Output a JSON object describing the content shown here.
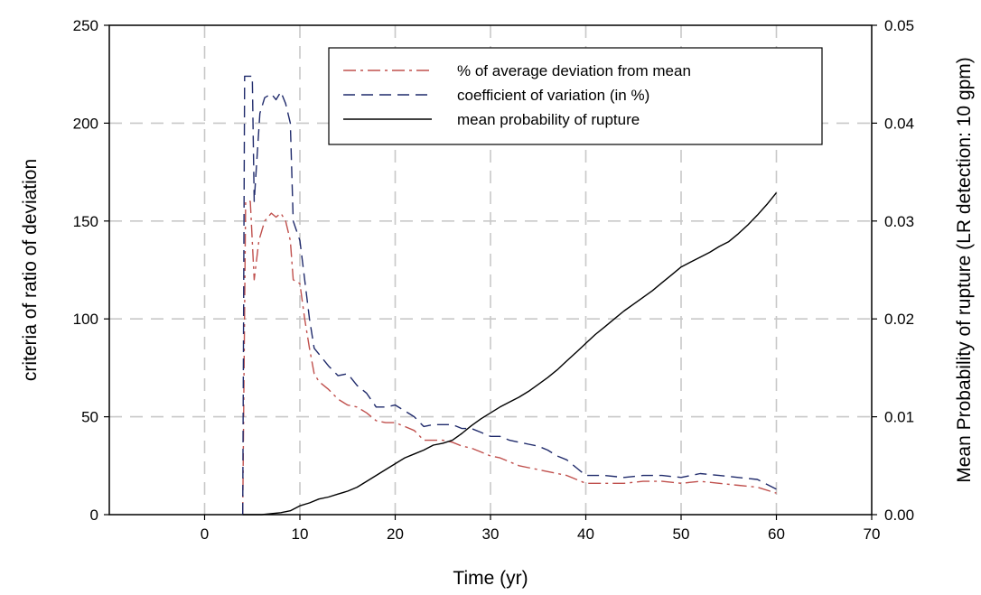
{
  "chart_data": {
    "type": "line",
    "xlabel": "Time (yr)",
    "ylabel_left": "criteria of ratio of deviation",
    "ylabel_right": "Mean Probability of rupture (LR detection: 10 gpm)",
    "xlim": [
      -10,
      70
    ],
    "ylim_left": [
      0,
      250
    ],
    "ylim_right": [
      0,
      0.05
    ],
    "x_ticks": [
      0,
      10,
      20,
      30,
      40,
      50,
      60,
      70
    ],
    "y_ticks_left": [
      0,
      50,
      100,
      150,
      200,
      250
    ],
    "y_ticks_right": [
      "0.00",
      "0.01",
      "0.02",
      "0.03",
      "0.04",
      "0.05"
    ],
    "grid": true,
    "legend_position": "top-right",
    "series": [
      {
        "name": "% of average deviation from mean",
        "axis": "left",
        "color": "#c0504d",
        "style": "dash-dot",
        "points": [
          [
            4,
            0
          ],
          [
            4.3,
            160
          ],
          [
            4.8,
            160
          ],
          [
            5.2,
            120
          ],
          [
            5.7,
            140
          ],
          [
            6.3,
            150
          ],
          [
            7,
            154
          ],
          [
            7.5,
            152
          ],
          [
            8,
            154
          ],
          [
            8.5,
            150
          ],
          [
            9,
            140
          ],
          [
            9.3,
            120
          ],
          [
            10,
            118
          ],
          [
            10.5,
            100
          ],
          [
            11,
            85
          ],
          [
            11.5,
            72
          ],
          [
            12,
            68
          ],
          [
            13,
            64
          ],
          [
            14,
            59
          ],
          [
            15,
            56
          ],
          [
            16,
            55
          ],
          [
            17,
            52
          ],
          [
            18,
            48
          ],
          [
            19,
            47
          ],
          [
            20,
            47
          ],
          [
            21,
            45
          ],
          [
            22,
            43
          ],
          [
            23,
            38
          ],
          [
            24,
            38
          ],
          [
            25,
            38
          ],
          [
            26,
            37
          ],
          [
            27,
            35
          ],
          [
            28,
            34
          ],
          [
            29,
            32
          ],
          [
            30,
            30
          ],
          [
            31,
            29
          ],
          [
            32,
            27
          ],
          [
            33,
            25
          ],
          [
            34,
            24
          ],
          [
            35,
            23
          ],
          [
            36,
            22
          ],
          [
            37,
            21
          ],
          [
            38,
            20
          ],
          [
            39,
            18
          ],
          [
            40,
            16
          ],
          [
            42,
            16
          ],
          [
            44,
            16
          ],
          [
            46,
            17
          ],
          [
            48,
            17
          ],
          [
            50,
            16
          ],
          [
            52,
            17
          ],
          [
            54,
            16
          ],
          [
            56,
            15
          ],
          [
            58,
            14
          ],
          [
            60,
            11
          ]
        ]
      },
      {
        "name": "coefficient of variation (in %)",
        "axis": "left",
        "color": "#1f2a6b",
        "style": "dash",
        "points": [
          [
            4,
            0
          ],
          [
            4.2,
            224
          ],
          [
            5,
            224
          ],
          [
            5.2,
            160
          ],
          [
            5.8,
            205
          ],
          [
            6.3,
            213
          ],
          [
            7,
            215
          ],
          [
            7.5,
            212
          ],
          [
            8,
            216
          ],
          [
            8.5,
            210
          ],
          [
            9,
            200
          ],
          [
            9.3,
            150
          ],
          [
            10,
            140
          ],
          [
            10.5,
            120
          ],
          [
            11,
            100
          ],
          [
            11.5,
            85
          ],
          [
            12,
            82
          ],
          [
            13,
            76
          ],
          [
            14,
            71
          ],
          [
            15,
            72
          ],
          [
            16,
            66
          ],
          [
            17,
            62
          ],
          [
            18,
            55
          ],
          [
            19,
            55
          ],
          [
            20,
            56
          ],
          [
            21,
            53
          ],
          [
            22,
            50
          ],
          [
            23,
            45
          ],
          [
            24,
            46
          ],
          [
            25,
            46
          ],
          [
            26,
            46
          ],
          [
            27,
            44
          ],
          [
            28,
            44
          ],
          [
            29,
            42
          ],
          [
            30,
            40
          ],
          [
            31,
            40
          ],
          [
            32,
            38
          ],
          [
            33,
            37
          ],
          [
            34,
            36
          ],
          [
            35,
            35
          ],
          [
            36,
            33
          ],
          [
            37,
            30
          ],
          [
            38,
            28
          ],
          [
            39,
            24
          ],
          [
            40,
            20
          ],
          [
            42,
            20
          ],
          [
            44,
            19
          ],
          [
            46,
            20
          ],
          [
            48,
            20
          ],
          [
            50,
            19
          ],
          [
            52,
            21
          ],
          [
            54,
            20
          ],
          [
            56,
            19
          ],
          [
            58,
            18
          ],
          [
            60,
            13
          ]
        ]
      },
      {
        "name": "mean probability of rupture",
        "axis": "right",
        "color": "#000000",
        "style": "solid",
        "points": [
          [
            4,
            0
          ],
          [
            6,
            0
          ],
          [
            8,
            0.0002
          ],
          [
            9,
            0.0004
          ],
          [
            10,
            0.0009
          ],
          [
            11,
            0.0012
          ],
          [
            12,
            0.0016
          ],
          [
            13,
            0.0018
          ],
          [
            14,
            0.0021
          ],
          [
            15,
            0.0024
          ],
          [
            16,
            0.0028
          ],
          [
            17,
            0.0034
          ],
          [
            18,
            0.004
          ],
          [
            19,
            0.0046
          ],
          [
            20,
            0.0052
          ],
          [
            21,
            0.0058
          ],
          [
            22,
            0.0062
          ],
          [
            23,
            0.0066
          ],
          [
            24,
            0.0071
          ],
          [
            25,
            0.0073
          ],
          [
            26,
            0.0076
          ],
          [
            27,
            0.0083
          ],
          [
            28,
            0.0091
          ],
          [
            29,
            0.0098
          ],
          [
            30,
            0.0104
          ],
          [
            31,
            0.011
          ],
          [
            32,
            0.0115
          ],
          [
            33,
            0.012
          ],
          [
            34,
            0.0126
          ],
          [
            35,
            0.0133
          ],
          [
            36,
            0.014
          ],
          [
            37,
            0.0148
          ],
          [
            38,
            0.0157
          ],
          [
            39,
            0.0166
          ],
          [
            40,
            0.0175
          ],
          [
            41,
            0.0184
          ],
          [
            42,
            0.0192
          ],
          [
            43,
            0.02
          ],
          [
            44,
            0.0208
          ],
          [
            45,
            0.0215
          ],
          [
            46,
            0.0222
          ],
          [
            47,
            0.0229
          ],
          [
            48,
            0.0237
          ],
          [
            49,
            0.0245
          ],
          [
            50,
            0.0253
          ],
          [
            51,
            0.0258
          ],
          [
            52,
            0.0263
          ],
          [
            53,
            0.0268
          ],
          [
            54,
            0.0274
          ],
          [
            55,
            0.0279
          ],
          [
            56,
            0.0287
          ],
          [
            57,
            0.0296
          ],
          [
            58,
            0.0306
          ],
          [
            59,
            0.0317
          ],
          [
            60,
            0.0329
          ]
        ]
      }
    ]
  }
}
